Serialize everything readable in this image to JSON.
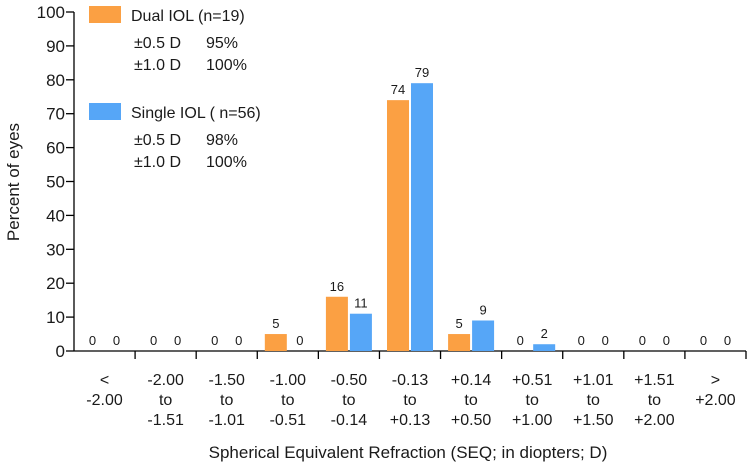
{
  "chart_data": {
    "type": "bar",
    "title": "",
    "ylabel": "Percent of eyes",
    "xlabel": "Spherical Equivalent Refraction (SEQ; in diopters; D)",
    "ylim": [
      0,
      100
    ],
    "yticks": [
      0,
      10,
      20,
      30,
      40,
      50,
      60,
      70,
      80,
      90,
      100
    ],
    "grid": false,
    "legend_position": "top-left",
    "categories": [
      [
        "<",
        "-2.00"
      ],
      [
        "-2.00",
        "to",
        "-1.51"
      ],
      [
        "-1.50",
        "to",
        "-1.01"
      ],
      [
        "-1.00",
        "to",
        "-0.51"
      ],
      [
        "-0.50",
        "to",
        "-0.14"
      ],
      [
        "-0.13",
        "to",
        "+0.13"
      ],
      [
        "+0.14",
        "to",
        "+0.50"
      ],
      [
        "+0.51",
        "to",
        "+1.00"
      ],
      [
        "+1.01",
        "to",
        "+1.50"
      ],
      [
        "+1.51",
        "to",
        "+2.00"
      ],
      [
        ">",
        "+2.00"
      ]
    ],
    "series": [
      {
        "name": "Dual IOL (n=19)",
        "color": "#FBA043",
        "values": [
          0,
          0,
          0,
          5,
          16,
          74,
          5,
          0,
          0,
          0,
          0
        ],
        "stats": [
          {
            "label": "±0.5 D",
            "value": "95%"
          },
          {
            "label": "±1.0 D",
            "value": "100%"
          }
        ]
      },
      {
        "name": "Single IOL ( n=56)",
        "color": "#56A6F7",
        "values": [
          0,
          0,
          0,
          0,
          11,
          79,
          9,
          2,
          0,
          0,
          0
        ],
        "stats": [
          {
            "label": "±0.5 D",
            "value": "98%"
          },
          {
            "label": "±1.0 D",
            "value": "100%"
          }
        ]
      }
    ]
  }
}
